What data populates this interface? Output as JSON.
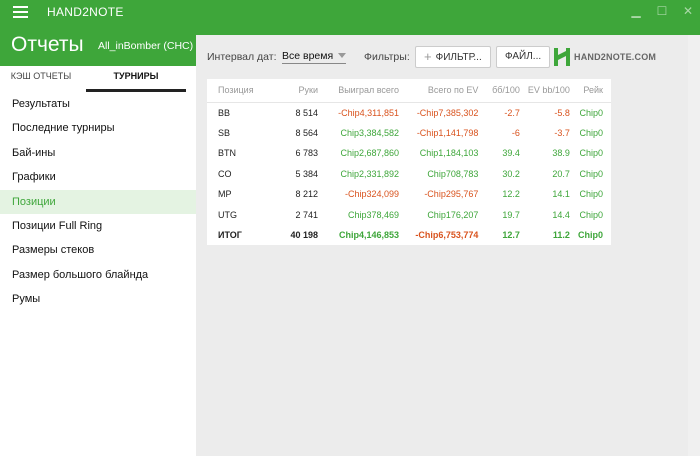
{
  "app": {
    "title": "HAND2NOTE"
  },
  "header": {
    "title": "Отчеты",
    "profile": "All_inBomber (CHC)"
  },
  "tabs": [
    {
      "label": "КЭШ ОТЧЕТЫ"
    },
    {
      "label": "ТУРНИРЫ"
    }
  ],
  "nav": {
    "items": [
      "Результаты",
      "Последние турниры",
      "Бай-ины",
      "Графики",
      "Позиции",
      "Позиции Full Ring",
      "Размеры стеков",
      "Размер большого блайнда",
      "Румы"
    ],
    "active": "Позиции"
  },
  "toolbar": {
    "date_label": "Интервал дат:",
    "date_value": "Все время",
    "filters_label": "Фильтры:",
    "filter_button": "ФИЛЬТР...",
    "file_button": "ФАЙЛ...",
    "logo_text": "HAND2NOTE.COM"
  },
  "table": {
    "headers": [
      "Позиция",
      "Руки",
      "Выиграл всего",
      "Всего по EV",
      "бб/100",
      "EV bb/100",
      "Рейк"
    ],
    "rows": [
      {
        "position": "BB",
        "hands": "8 514",
        "won": "-Chip4,311,851",
        "ev": "-Chip7,385,302",
        "bb100": "-2.7",
        "evbb100": "-5.8",
        "rake": "Chip0"
      },
      {
        "position": "SB",
        "hands": "8 564",
        "won": "Chip3,384,582",
        "ev": "-Chip1,141,798",
        "bb100": "-6",
        "evbb100": "-3.7",
        "rake": "Chip0"
      },
      {
        "position": "BTN",
        "hands": "6 783",
        "won": "Chip2,687,860",
        "ev": "Chip1,184,103",
        "bb100": "39.4",
        "evbb100": "38.9",
        "rake": "Chip0"
      },
      {
        "position": "CO",
        "hands": "5 384",
        "won": "Chip2,331,892",
        "ev": "Chip708,783",
        "bb100": "30.2",
        "evbb100": "20.7",
        "rake": "Chip0"
      },
      {
        "position": "MP",
        "hands": "8 212",
        "won": "-Chip324,099",
        "ev": "-Chip295,767",
        "bb100": "12.2",
        "evbb100": "14.1",
        "rake": "Chip0"
      },
      {
        "position": "UTG",
        "hands": "2 741",
        "won": "Chip378,469",
        "ev": "Chip176,207",
        "bb100": "19.7",
        "evbb100": "14.4",
        "rake": "Chip0"
      }
    ],
    "total": {
      "position": "ИТОГ",
      "hands": "40 198",
      "won": "Chip4,146,853",
      "ev": "-Chip6,753,774",
      "bb100": "12.7",
      "evbb100": "11.2",
      "rake": "Chip0"
    }
  },
  "colors": {
    "brand": "#3ea63a",
    "positive": "#3ea63a",
    "negative": "#d9531e"
  },
  "icons": {
    "menu": "hamburger-icon",
    "minimize": "minimize-icon",
    "maximize": "maximize-icon",
    "close": "close-icon",
    "logo": "hand2note-logo-icon"
  },
  "window_controls": {
    "minimize": "▁",
    "maximize": "☐",
    "close": "✕"
  }
}
